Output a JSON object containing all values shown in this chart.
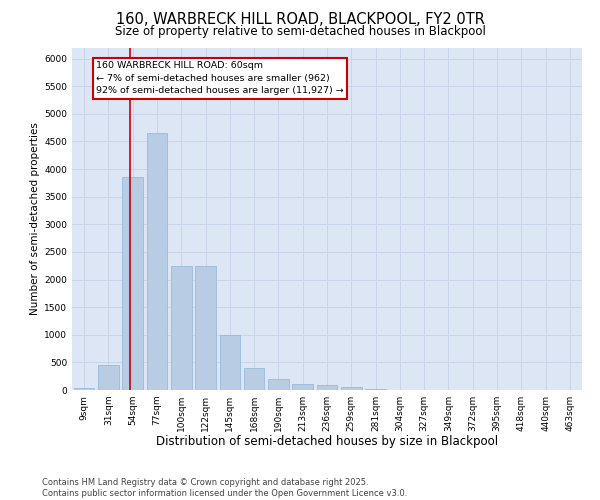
{
  "title1": "160, WARBRECK HILL ROAD, BLACKPOOL, FY2 0TR",
  "title2": "Size of property relative to semi-detached houses in Blackpool",
  "xlabel": "Distribution of semi-detached houses by size in Blackpool",
  "ylabel": "Number of semi-detached properties",
  "categories": [
    "9sqm",
    "31sqm",
    "54sqm",
    "77sqm",
    "100sqm",
    "122sqm",
    "145sqm",
    "168sqm",
    "190sqm",
    "213sqm",
    "236sqm",
    "259sqm",
    "281sqm",
    "304sqm",
    "327sqm",
    "349sqm",
    "372sqm",
    "395sqm",
    "418sqm",
    "440sqm",
    "463sqm"
  ],
  "values": [
    30,
    450,
    3850,
    4650,
    2250,
    2250,
    1000,
    390,
    200,
    110,
    90,
    50,
    10,
    5,
    2,
    2,
    1,
    1,
    1,
    0,
    0
  ],
  "bar_color": "#b8cce4",
  "bar_edge_color": "#8fb4d9",
  "grid_color": "#c8d4e8",
  "background_color": "#dce6f5",
  "fig_background": "#ffffff",
  "annotation_text": "160 WARBRECK HILL ROAD: 60sqm\n← 7% of semi-detached houses are smaller (962)\n92% of semi-detached houses are larger (11,927) →",
  "vline_color": "#cc0000",
  "annotation_box_color": "#ffffff",
  "annotation_box_edge_color": "#cc0000",
  "ylim": [
    0,
    6200
  ],
  "yticks": [
    0,
    500,
    1000,
    1500,
    2000,
    2500,
    3000,
    3500,
    4000,
    4500,
    5000,
    5500,
    6000
  ],
  "footnote": "Contains HM Land Registry data © Crown copyright and database right 2025.\nContains public sector information licensed under the Open Government Licence v3.0.",
  "title1_fontsize": 10.5,
  "title2_fontsize": 8.5,
  "xlabel_fontsize": 8.5,
  "ylabel_fontsize": 7.5,
  "tick_fontsize": 6.5,
  "annot_fontsize": 6.8,
  "footnote_fontsize": 6.0
}
